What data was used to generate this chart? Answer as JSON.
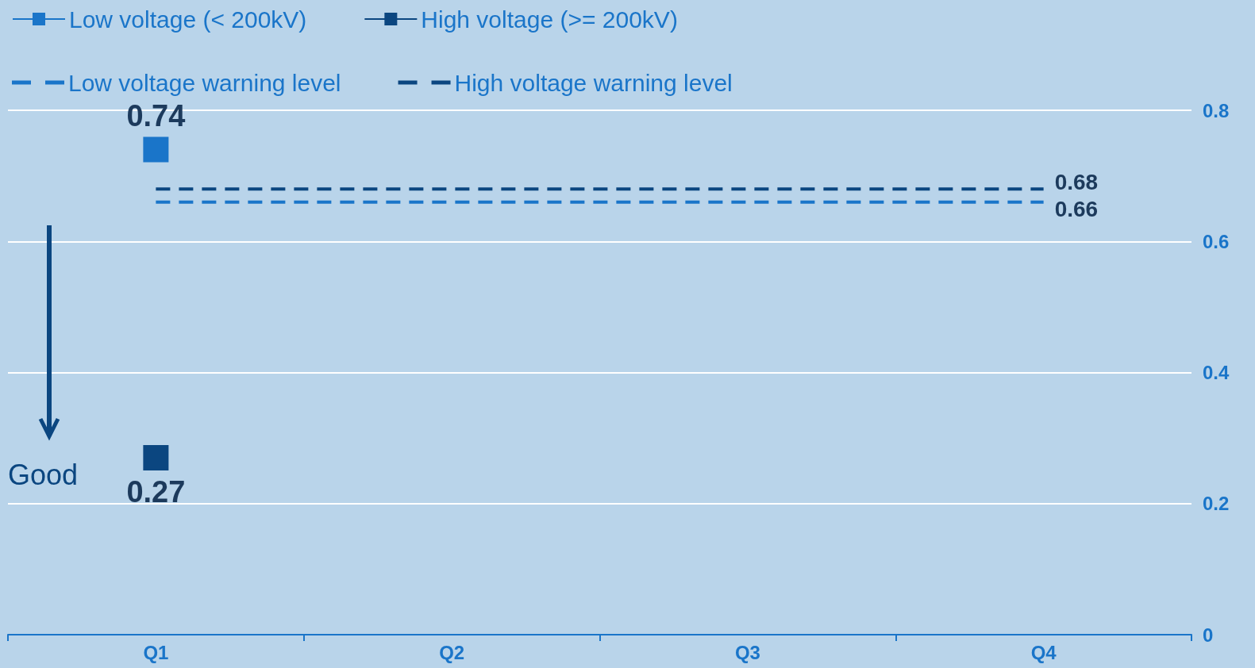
{
  "chart_data": {
    "type": "line",
    "categories": [
      "Q1",
      "Q2",
      "Q3",
      "Q4"
    ],
    "series": [
      {
        "name": "Low voltage (< 200kV)",
        "color": "#1a75c9",
        "values": [
          0.74,
          null,
          null,
          null
        ],
        "value_labels": [
          "0.74",
          null,
          null,
          null
        ],
        "marker": "square"
      },
      {
        "name": "High voltage (>= 200kV)",
        "color": "#0b4680",
        "values": [
          0.27,
          null,
          null,
          null
        ],
        "value_labels": [
          "0.27",
          null,
          null,
          null
        ],
        "marker": "square"
      },
      {
        "name": "Low voltage warning level",
        "color": "#1a75c9",
        "values": [
          0.66,
          0.66,
          0.66,
          0.66
        ],
        "value_labels": [
          null,
          null,
          null,
          "0.66"
        ],
        "marker": "none",
        "line_style": "dashed"
      },
      {
        "name": "High voltage warning level",
        "color": "#0b4680",
        "values": [
          0.68,
          0.68,
          0.68,
          0.68
        ],
        "value_labels": [
          null,
          null,
          null,
          "0.68"
        ],
        "marker": "none",
        "line_style": "dashed"
      }
    ],
    "ylim": [
      0,
      0.8
    ],
    "yticks": [
      0,
      0.2,
      0.4,
      0.6,
      0.8
    ],
    "grid": "y",
    "legend": "top left",
    "annotations": [
      "Good"
    ]
  }
}
